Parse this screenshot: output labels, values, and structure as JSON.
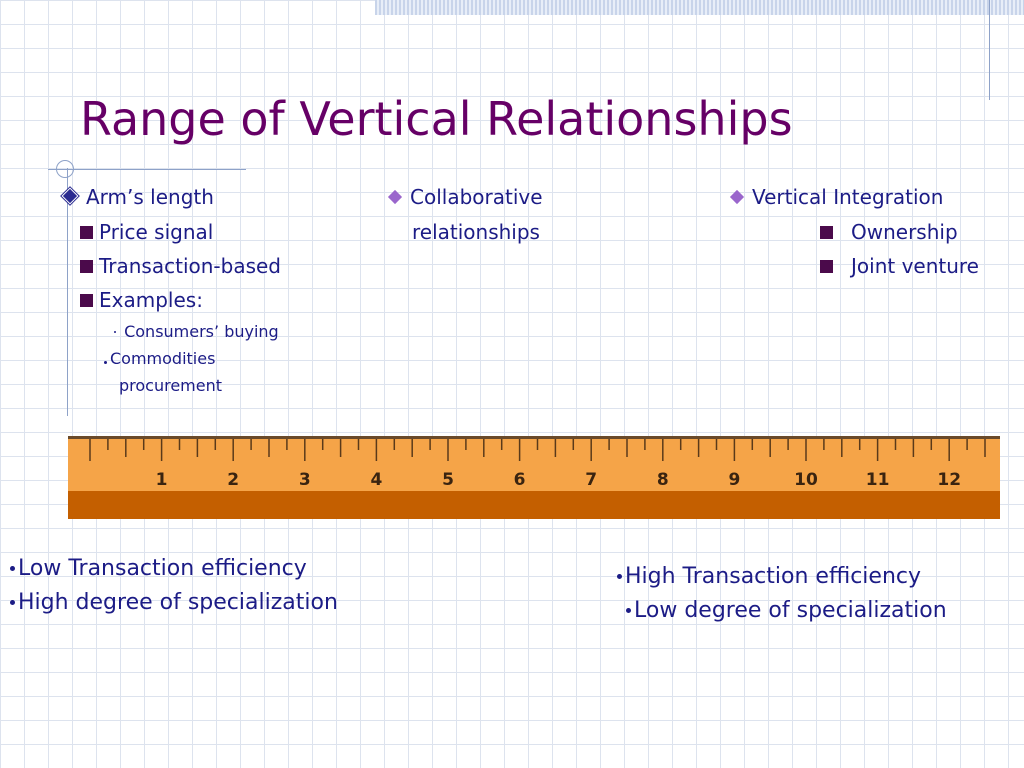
{
  "title": "Range of Vertical Relationships",
  "columns": [
    {
      "heading": "Arm’s length",
      "items": [
        "Price signal",
        "Transaction-based",
        "Examples:"
      ],
      "examples": [
        "Consumers’ buying",
        "Commodities",
        "procurement"
      ]
    },
    {
      "heading": "Collaborative",
      "heading_line2": "relationships"
    },
    {
      "heading": "Vertical Integration",
      "items": [
        "Ownership",
        "Joint venture"
      ]
    }
  ],
  "ruler": {
    "labels": [
      1,
      2,
      3,
      4,
      5,
      6,
      7,
      8,
      9,
      10,
      11,
      12
    ]
  },
  "bottom_left": [
    "Low Transaction efficiency",
    "High degree of specialization"
  ],
  "bottom_right": [
    "High Transaction efficiency",
    "Low degree of specialization"
  ]
}
